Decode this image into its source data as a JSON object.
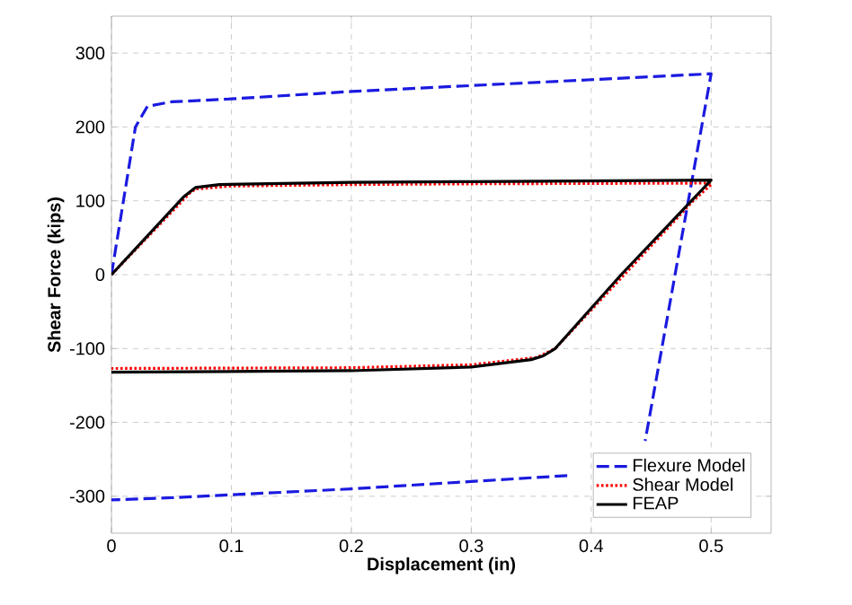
{
  "chart_data": {
    "type": "line",
    "xlabel": "Displacement (in)",
    "ylabel": "Shear Force (kips)",
    "xlim": [
      0,
      0.55
    ],
    "ylim": [
      -350,
      350
    ],
    "xticks": [
      0,
      0.1,
      0.2,
      0.3,
      0.4,
      0.5
    ],
    "yticks": [
      -300,
      -200,
      -100,
      0,
      100,
      200,
      300
    ],
    "grid": true,
    "legend": "bottom right",
    "marker": "none",
    "series": [
      {
        "name": "Flexure Model",
        "color": "#1a1ae0",
        "line_style": "dashed",
        "x": [
          0,
          0.02,
          0.03,
          0.05,
          0.1,
          0.2,
          0.3,
          0.4,
          0.5,
          0.445,
          0.44,
          0.38,
          0.3,
          0.2,
          0.1,
          0.05,
          0
        ],
        "values": [
          0,
          200,
          228,
          234,
          238,
          248,
          256,
          264,
          272,
          -225,
          null,
          -272,
          -280,
          -290,
          -298,
          -302,
          -305
        ]
      },
      {
        "name": "Shear Model",
        "color": "#ff0000",
        "line_style": "dotted",
        "x": [
          0,
          0.065,
          0.07,
          0.1,
          0.2,
          0.3,
          0.5,
          0.5,
          0.485,
          0.37,
          0.355,
          0.3,
          0.2,
          0
        ],
        "values": [
          0,
          110,
          116,
          120,
          122,
          123,
          124,
          122,
          100,
          -100,
          -112,
          -122,
          -126,
          -127
        ]
      },
      {
        "name": "FEAP",
        "color": "#000000",
        "line_style": "solid",
        "x": [
          0,
          0.06,
          0.07,
          0.09,
          0.2,
          0.3,
          0.5,
          0.425,
          0.37,
          0.36,
          0.35,
          0.3,
          0.2,
          0
        ],
        "values": [
          0,
          105,
          118,
          122,
          125,
          126,
          128,
          0,
          -100,
          -110,
          -115,
          -125,
          -130,
          -132
        ]
      }
    ]
  }
}
